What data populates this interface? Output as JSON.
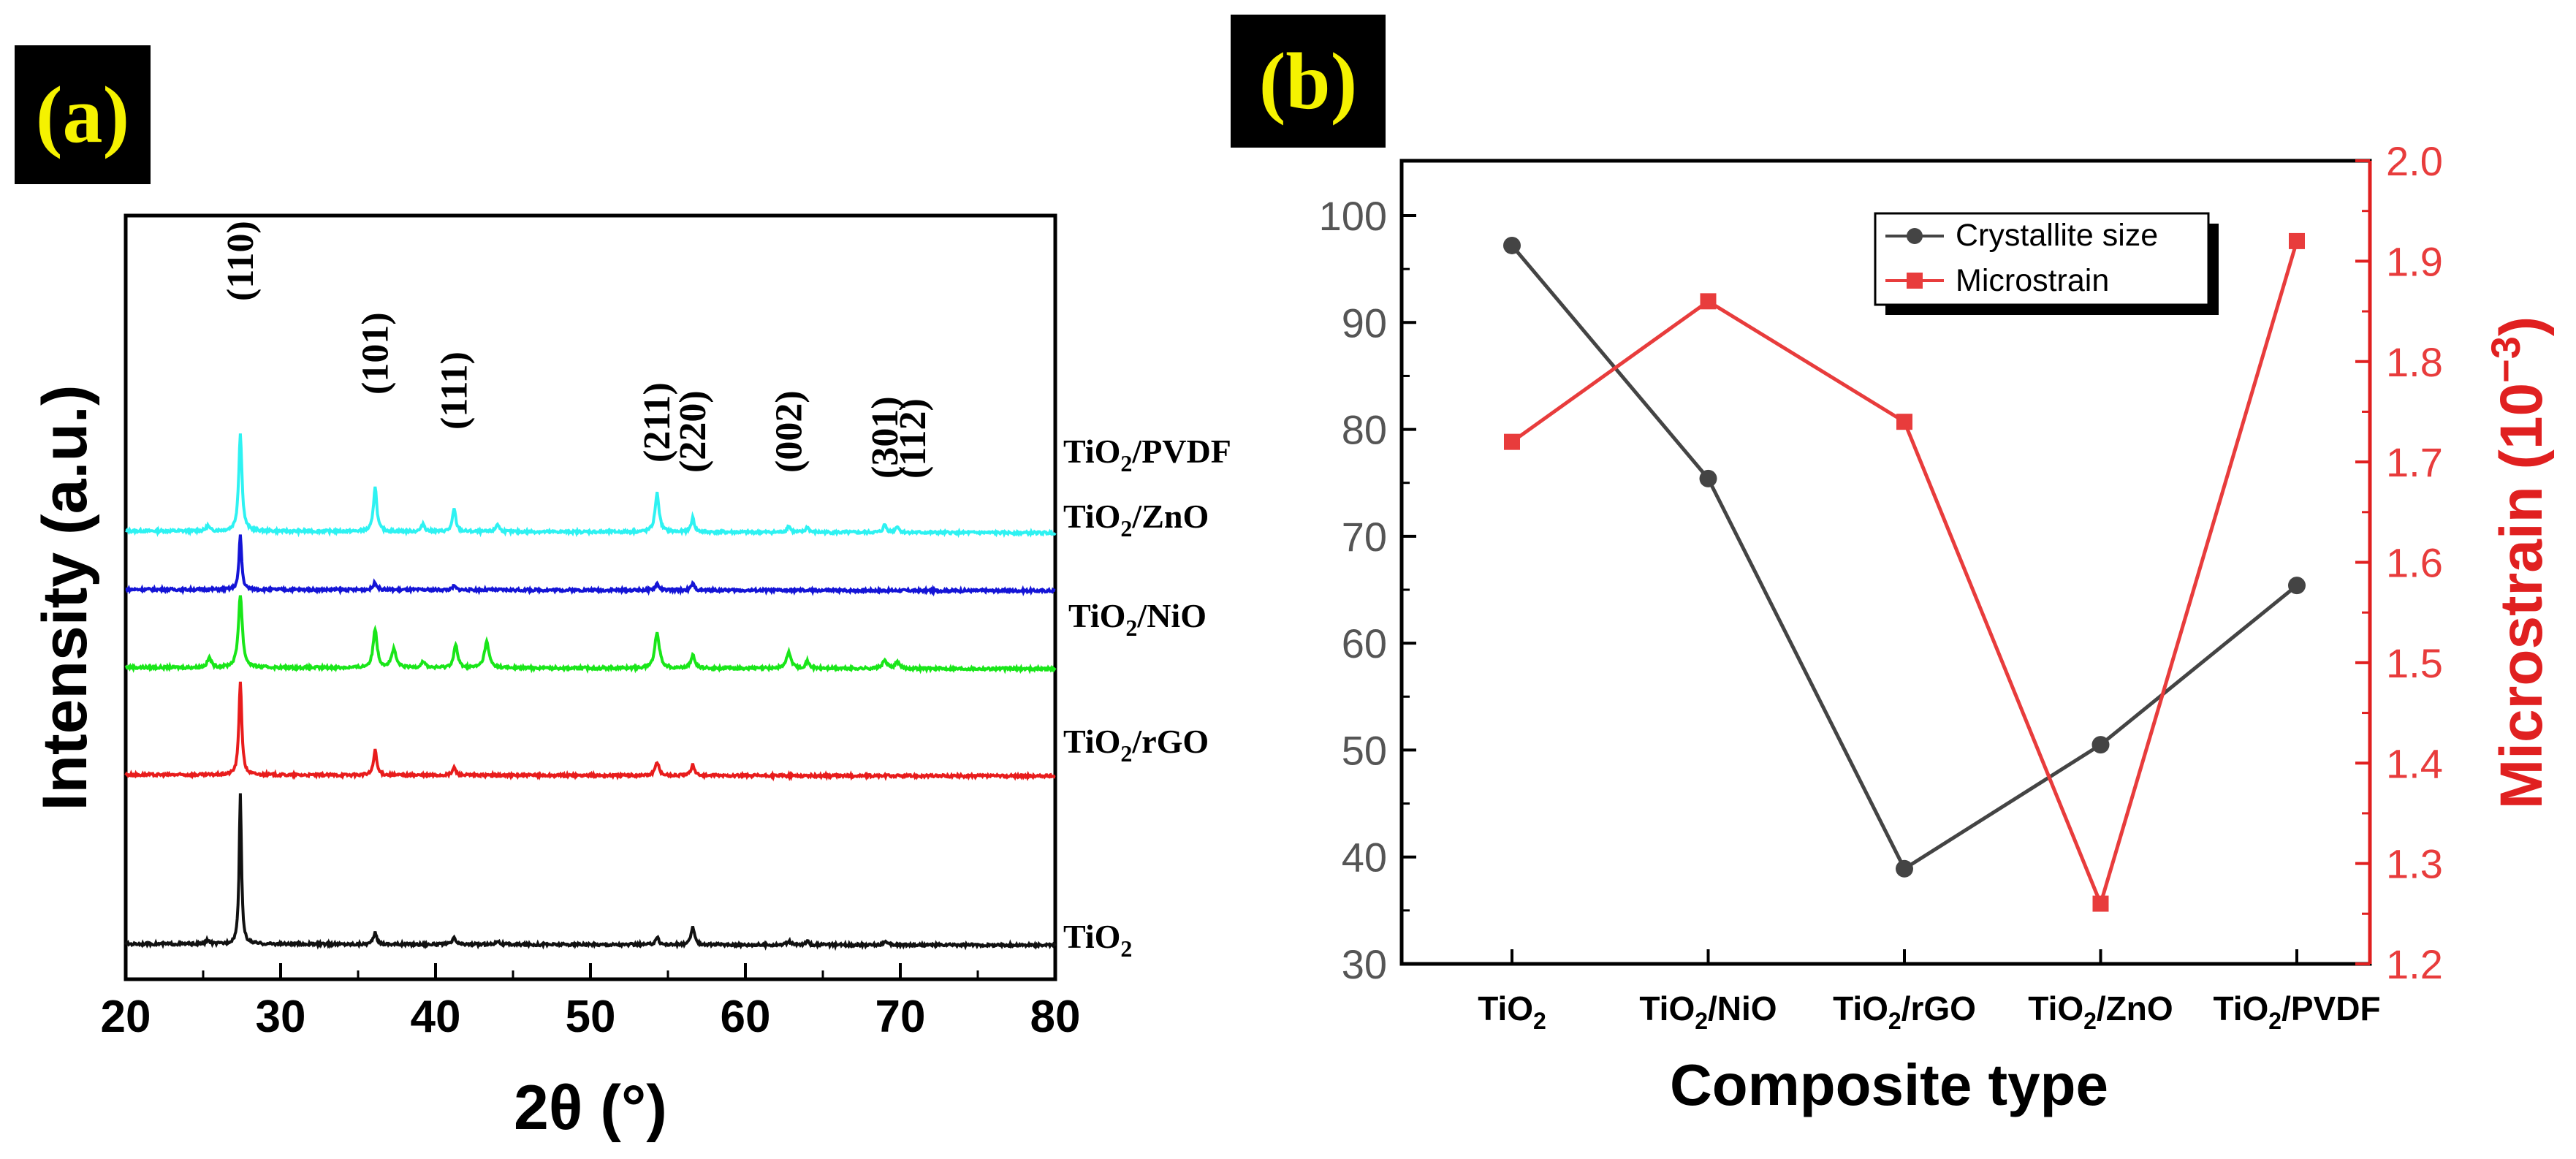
{
  "panel_labels": {
    "a": "(a)",
    "b": "(b)"
  },
  "colors": {
    "panel_label_bg": "#000000",
    "panel_label_text": "#f5f200",
    "pvdf": "#2ef2f2",
    "zno": "#1414d6",
    "nio": "#19e619",
    "rgo": "#e81c1c",
    "tio2": "#111111",
    "crystallite": "#444444",
    "microstrain": "#e83c3c",
    "axis_right": "#e02020"
  },
  "chart_data": [
    {
      "id": "a",
      "type": "line",
      "title": "",
      "xlabel": "2θ (°)",
      "ylabel": "Intensity (a.u.)",
      "xlim": [
        20,
        80
      ],
      "xticks": [
        20,
        30,
        40,
        50,
        60,
        70,
        80
      ],
      "yticks_visible": false,
      "series": [
        {
          "name": "TiO2/PVDF",
          "label_main": "TiO",
          "label_sub": "2",
          "label_rest": "/PVDF",
          "color": "#2ef2f2",
          "baseline": 0.65,
          "slope": -0.003,
          "peaks": [
            [
              25.3,
              0.008,
              0.25
            ],
            [
              27.4,
              0.15,
              0.25
            ],
            [
              36.1,
              0.07,
              0.25
            ],
            [
              39.2,
              0.012,
              0.25
            ],
            [
              41.2,
              0.035,
              0.25
            ],
            [
              44.0,
              0.012,
              0.25
            ],
            [
              54.3,
              0.06,
              0.3
            ],
            [
              56.6,
              0.022,
              0.25
            ],
            [
              62.8,
              0.01,
              0.25
            ],
            [
              64.0,
              0.008,
              0.25
            ],
            [
              69.0,
              0.012,
              0.25
            ],
            [
              69.8,
              0.01,
              0.25
            ]
          ]
        },
        {
          "name": "TiO2/ZnO",
          "label_main": "TiO",
          "label_sub": "2",
          "label_rest": "/ZnO",
          "color": "#1414d6",
          "baseline": 0.56,
          "slope": -0.002,
          "peaks": [
            [
              27.4,
              0.085,
              0.2
            ],
            [
              36.1,
              0.012,
              0.25
            ],
            [
              41.2,
              0.006,
              0.25
            ],
            [
              54.3,
              0.01,
              0.25
            ],
            [
              56.6,
              0.01,
              0.25
            ]
          ]
        },
        {
          "name": "TiO2/NiO",
          "label_main": "TiO",
          "label_sub": "2",
          "label_rest": "/NiO",
          "color": "#19e619",
          "baseline": 0.44,
          "slope": -0.002,
          "peaks": [
            [
              25.4,
              0.015,
              0.3
            ],
            [
              27.4,
              0.112,
              0.3
            ],
            [
              36.1,
              0.06,
              0.3
            ],
            [
              37.3,
              0.028,
              0.35
            ],
            [
              39.2,
              0.01,
              0.3
            ],
            [
              41.3,
              0.035,
              0.3
            ],
            [
              43.3,
              0.04,
              0.35
            ],
            [
              54.3,
              0.055,
              0.35
            ],
            [
              56.6,
              0.02,
              0.3
            ],
            [
              62.8,
              0.025,
              0.35
            ],
            [
              64.0,
              0.01,
              0.3
            ],
            [
              69.0,
              0.012,
              0.35
            ],
            [
              69.8,
              0.01,
              0.3
            ]
          ]
        },
        {
          "name": "TiO2/rGO",
          "label_main": "TiO",
          "label_sub": "2",
          "label_rest": "/rGO",
          "color": "#e81c1c",
          "baseline": 0.275,
          "slope": -0.002,
          "peaks": [
            [
              27.4,
              0.145,
              0.22
            ],
            [
              36.1,
              0.038,
              0.25
            ],
            [
              41.2,
              0.012,
              0.25
            ],
            [
              54.3,
              0.02,
              0.3
            ],
            [
              56.6,
              0.018,
              0.25
            ]
          ]
        },
        {
          "name": "TiO2",
          "label_main": "TiO",
          "label_sub": "2",
          "label_rest": "",
          "color": "#111111",
          "baseline": 0.015,
          "slope": -0.002,
          "peaks": [
            [
              25.3,
              0.006,
              0.25
            ],
            [
              27.4,
              0.23,
              0.18
            ],
            [
              36.1,
              0.018,
              0.25
            ],
            [
              41.2,
              0.01,
              0.25
            ],
            [
              44.0,
              0.006,
              0.25
            ],
            [
              54.3,
              0.012,
              0.25
            ],
            [
              56.6,
              0.028,
              0.25
            ],
            [
              62.8,
              0.006,
              0.25
            ],
            [
              64.0,
              0.005,
              0.25
            ],
            [
              69.0,
              0.006,
              0.25
            ]
          ]
        }
      ],
      "annotations": [
        {
          "text": "(110)",
          "x": 27.4
        },
        {
          "text": "(101)",
          "x": 36.1
        },
        {
          "text": "(111)",
          "x": 41.2
        },
        {
          "text": "(211)",
          "x": 54.3
        },
        {
          "text": "(220)",
          "x": 56.6
        },
        {
          "text": "(002)",
          "x": 62.8
        },
        {
          "text": "(301)",
          "x": 69.0
        },
        {
          "text": "(112)",
          "x": 70.8
        }
      ]
    },
    {
      "id": "b",
      "type": "line",
      "title": "",
      "xlabel": "Composite type",
      "ylabel": "",
      "y2label": "Microstrain (10",
      "y2label_sup": "−3",
      "y2label_end": ")",
      "categories": [
        {
          "main": "TiO",
          "sub": "2",
          "rest": ""
        },
        {
          "main": "TiO",
          "sub": "2",
          "rest": "/NiO"
        },
        {
          "main": "TiO",
          "sub": "2",
          "rest": "/rGO"
        },
        {
          "main": "TiO",
          "sub": "2",
          "rest": "/ZnO"
        },
        {
          "main": "TiO",
          "sub": "2",
          "rest": "/PVDF"
        }
      ],
      "ylim": [
        30,
        105
      ],
      "yticks": [
        30,
        40,
        50,
        60,
        70,
        80,
        90,
        100
      ],
      "y2lim": [
        1.2,
        2.0
      ],
      "y2ticks": [
        "1.2",
        "1.3",
        "1.4",
        "1.5",
        "1.6",
        "1.7",
        "1.8",
        "1.9",
        "2.0"
      ],
      "legend_placement": "top-center",
      "series": [
        {
          "name": "Crystallite size",
          "axis": "left",
          "marker": "circle",
          "color": "#444444",
          "values": [
            97.2,
            75.4,
            38.9,
            50.5,
            65.4
          ]
        },
        {
          "name": "Microstrain",
          "axis": "right",
          "marker": "square",
          "color": "#e83c3c",
          "values": [
            1.72,
            1.86,
            1.74,
            1.26,
            1.92
          ]
        }
      ]
    }
  ]
}
